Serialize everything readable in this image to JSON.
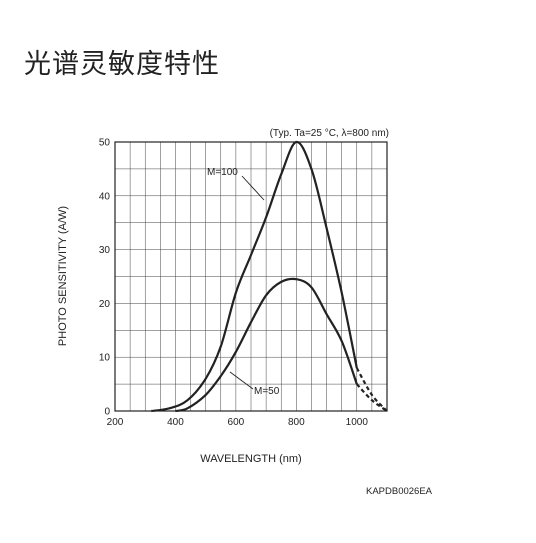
{
  "page": {
    "title": "光谱灵敏度特性"
  },
  "chart_data": {
    "type": "line",
    "title": "",
    "condition_note": "(Typ. Ta=25 °C, λ=800 nm)",
    "xlabel": "WAVELENGTH (nm)",
    "ylabel": "PHOTO SENSITIVITY (A/W)",
    "xlim": [
      200,
      1100
    ],
    "ylim": [
      0,
      50
    ],
    "xticks": [
      200,
      400,
      600,
      800,
      1000
    ],
    "yticks": [
      0,
      10,
      20,
      30,
      40,
      50
    ],
    "grid": true,
    "series": [
      {
        "name": "M=100",
        "x": [
          320,
          380,
          440,
          500,
          550,
          600,
          650,
          700,
          750,
          800,
          850,
          900,
          950,
          1000,
          1050,
          1100
        ],
        "y": [
          0.0,
          0.5,
          2.0,
          6.0,
          12.0,
          22.0,
          29.0,
          36.0,
          44.0,
          50.0,
          45.0,
          34.0,
          22.0,
          8.0,
          3.0,
          0.0
        ],
        "dashed_from_x": 1000
      },
      {
        "name": "M=50",
        "x": [
          400,
          440,
          500,
          550,
          600,
          650,
          700,
          750,
          800,
          850,
          900,
          950,
          1000,
          1050,
          1100
        ],
        "y": [
          0.0,
          0.5,
          3.0,
          6.5,
          11.0,
          16.5,
          21.5,
          24.0,
          24.5,
          23.0,
          18.0,
          13.0,
          5.0,
          2.0,
          0.0
        ],
        "dashed_from_x": 1000
      }
    ],
    "annotations": [
      {
        "text": "M=100"
      },
      {
        "text": "M=50"
      }
    ],
    "code": "KAPDB0026EA"
  }
}
